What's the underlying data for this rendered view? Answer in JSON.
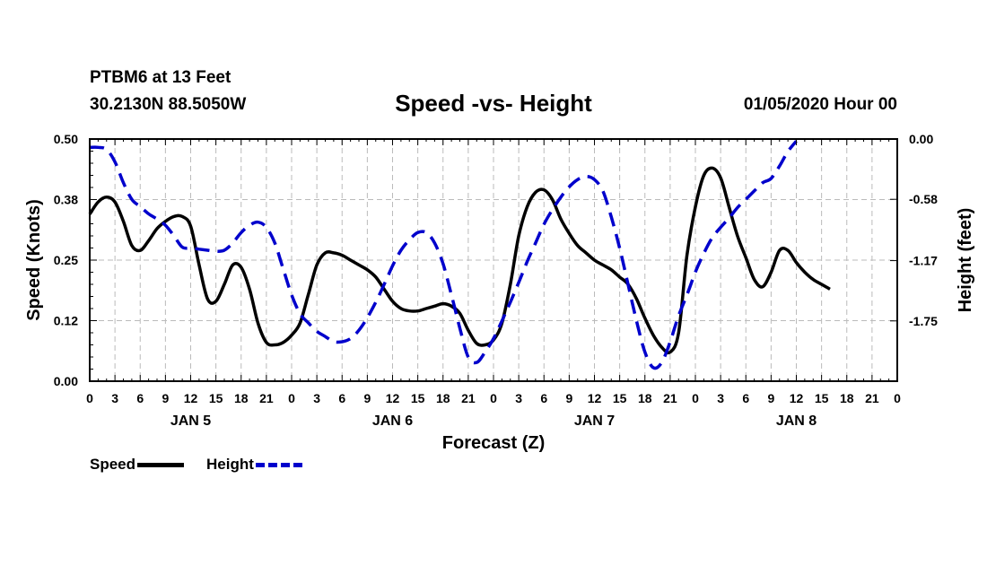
{
  "header": {
    "station": "PTBM6 at 13 Feet",
    "coords": "30.2130N 88.5050W",
    "title": "Speed -vs- Height",
    "datestr": "01/05/2020 Hour 00"
  },
  "colors": {
    "speed": "#000000",
    "height": "#0000cc",
    "grid": "#bbbbbb"
  },
  "legend": {
    "speed": "Speed",
    "height": "Height"
  },
  "chart_data": {
    "type": "line",
    "title": "Speed -vs- Height",
    "xlabel": "Forecast (Z)",
    "ylabel": "Speed (Knots)",
    "y2label": "Height (feet)",
    "x_range": [
      0,
      96
    ],
    "ylim": [
      0,
      0.5
    ],
    "y2lim": [
      -2.33,
      0.0
    ],
    "y_ticks": [
      0.0,
      0.125,
      0.25,
      0.375,
      0.5
    ],
    "y_tick_labels": [
      "0.00",
      "0.12",
      "0.25",
      "0.38",
      "0.50"
    ],
    "y2_ticks": [
      0.0,
      -0.58,
      -1.17,
      -1.75
    ],
    "y2_tick_labels": [
      "0.00",
      "-0.58",
      "-1.17",
      "-1.75"
    ],
    "x_ticks": [
      0,
      3,
      6,
      9,
      12,
      15,
      18,
      21,
      24,
      27,
      30,
      33,
      36,
      39,
      42,
      45,
      48,
      51,
      54,
      57,
      60,
      63,
      66,
      69,
      72,
      75,
      78,
      81,
      84,
      87,
      90,
      93,
      96
    ],
    "x_tick_labels": [
      "0",
      "3",
      "6",
      "9",
      "12",
      "15",
      "18",
      "21",
      "0",
      "3",
      "6",
      "9",
      "12",
      "15",
      "18",
      "21",
      "0",
      "3",
      "6",
      "9",
      "12",
      "15",
      "18",
      "21",
      "0",
      "3",
      "6",
      "9",
      "12",
      "15",
      "18",
      "21",
      "0"
    ],
    "day_labels": [
      {
        "label": "JAN 5",
        "x": 12
      },
      {
        "label": "JAN 6",
        "x": 36
      },
      {
        "label": "JAN 7",
        "x": 60
      },
      {
        "label": "JAN 8",
        "x": 84
      }
    ],
    "grid": true,
    "series": [
      {
        "name": "Speed",
        "axis": "left",
        "style": "solid",
        "points": [
          [
            0,
            0.345
          ],
          [
            1,
            0.37
          ],
          [
            2,
            0.38
          ],
          [
            3,
            0.37
          ],
          [
            4,
            0.33
          ],
          [
            5,
            0.28
          ],
          [
            6,
            0.27
          ],
          [
            7,
            0.29
          ],
          [
            8,
            0.315
          ],
          [
            9,
            0.33
          ],
          [
            10,
            0.34
          ],
          [
            11,
            0.34
          ],
          [
            12,
            0.32
          ],
          [
            13,
            0.24
          ],
          [
            14,
            0.17
          ],
          [
            15,
            0.165
          ],
          [
            16,
            0.2
          ],
          [
            17,
            0.24
          ],
          [
            18,
            0.235
          ],
          [
            19,
            0.19
          ],
          [
            20,
            0.12
          ],
          [
            21,
            0.08
          ],
          [
            22,
            0.075
          ],
          [
            23,
            0.08
          ],
          [
            24,
            0.095
          ],
          [
            25,
            0.12
          ],
          [
            26,
            0.18
          ],
          [
            27,
            0.24
          ],
          [
            28,
            0.265
          ],
          [
            29,
            0.265
          ],
          [
            30,
            0.26
          ],
          [
            31,
            0.25
          ],
          [
            32,
            0.24
          ],
          [
            33,
            0.23
          ],
          [
            34,
            0.215
          ],
          [
            35,
            0.19
          ],
          [
            36,
            0.165
          ],
          [
            37,
            0.15
          ],
          [
            38,
            0.145
          ],
          [
            39,
            0.145
          ],
          [
            40,
            0.15
          ],
          [
            41,
            0.155
          ],
          [
            42,
            0.16
          ],
          [
            43,
            0.155
          ],
          [
            44,
            0.14
          ],
          [
            45,
            0.105
          ],
          [
            46,
            0.078
          ],
          [
            47,
            0.075
          ],
          [
            48,
            0.085
          ],
          [
            49,
            0.12
          ],
          [
            50,
            0.2
          ],
          [
            51,
            0.3
          ],
          [
            52,
            0.36
          ],
          [
            53,
            0.39
          ],
          [
            54,
            0.395
          ],
          [
            55,
            0.375
          ],
          [
            56,
            0.335
          ],
          [
            57,
            0.305
          ],
          [
            58,
            0.28
          ],
          [
            59,
            0.265
          ],
          [
            60,
            0.25
          ],
          [
            61,
            0.24
          ],
          [
            62,
            0.23
          ],
          [
            63,
            0.215
          ],
          [
            64,
            0.2
          ],
          [
            65,
            0.17
          ],
          [
            66,
            0.13
          ],
          [
            67,
            0.095
          ],
          [
            68,
            0.07
          ],
          [
            69,
            0.06
          ],
          [
            70,
            0.1
          ],
          [
            71,
            0.26
          ],
          [
            72,
            0.36
          ],
          [
            73,
            0.425
          ],
          [
            74,
            0.44
          ],
          [
            75,
            0.42
          ],
          [
            76,
            0.36
          ],
          [
            77,
            0.3
          ],
          [
            78,
            0.255
          ],
          [
            79,
            0.21
          ],
          [
            80,
            0.195
          ],
          [
            81,
            0.225
          ],
          [
            82,
            0.27
          ],
          [
            83,
            0.27
          ],
          [
            84,
            0.245
          ],
          [
            85,
            0.225
          ],
          [
            86,
            0.21
          ],
          [
            87,
            0.2
          ],
          [
            88,
            0.19
          ]
        ]
      },
      {
        "name": "Height",
        "axis": "right",
        "style": "dashed",
        "points": [
          [
            0,
            -0.08
          ],
          [
            1,
            -0.08
          ],
          [
            2,
            -0.1
          ],
          [
            3,
            -0.22
          ],
          [
            4,
            -0.42
          ],
          [
            5,
            -0.58
          ],
          [
            6,
            -0.65
          ],
          [
            7,
            -0.72
          ],
          [
            8,
            -0.77
          ],
          [
            9,
            -0.83
          ],
          [
            10,
            -0.93
          ],
          [
            11,
            -1.04
          ],
          [
            12,
            -1.05
          ],
          [
            13,
            -1.06
          ],
          [
            14,
            -1.07
          ],
          [
            15,
            -1.08
          ],
          [
            16,
            -1.07
          ],
          [
            17,
            -1.0
          ],
          [
            18,
            -0.9
          ],
          [
            19,
            -0.83
          ],
          [
            20,
            -0.8
          ],
          [
            21,
            -0.85
          ],
          [
            22,
            -1.0
          ],
          [
            23,
            -1.25
          ],
          [
            24,
            -1.5
          ],
          [
            25,
            -1.68
          ],
          [
            26,
            -1.77
          ],
          [
            27,
            -1.85
          ],
          [
            28,
            -1.9
          ],
          [
            29,
            -1.95
          ],
          [
            30,
            -1.95
          ],
          [
            31,
            -1.92
          ],
          [
            32,
            -1.84
          ],
          [
            33,
            -1.72
          ],
          [
            34,
            -1.57
          ],
          [
            35,
            -1.4
          ],
          [
            36,
            -1.22
          ],
          [
            37,
            -1.07
          ],
          [
            38,
            -0.97
          ],
          [
            39,
            -0.9
          ],
          [
            40,
            -0.9
          ],
          [
            41,
            -1.0
          ],
          [
            42,
            -1.2
          ],
          [
            43,
            -1.5
          ],
          [
            44,
            -1.82
          ],
          [
            45,
            -2.1
          ],
          [
            46,
            -2.15
          ],
          [
            47,
            -2.05
          ],
          [
            48,
            -1.92
          ],
          [
            49,
            -1.75
          ],
          [
            50,
            -1.57
          ],
          [
            51,
            -1.38
          ],
          [
            52,
            -1.18
          ],
          [
            53,
            -1.0
          ],
          [
            54,
            -0.82
          ],
          [
            55,
            -0.68
          ],
          [
            56,
            -0.56
          ],
          [
            57,
            -0.46
          ],
          [
            58,
            -0.39
          ],
          [
            59,
            -0.36
          ],
          [
            60,
            -0.39
          ],
          [
            61,
            -0.5
          ],
          [
            62,
            -0.75
          ],
          [
            63,
            -1.05
          ],
          [
            64,
            -1.4
          ],
          [
            65,
            -1.75
          ],
          [
            66,
            -2.05
          ],
          [
            67,
            -2.2
          ],
          [
            68,
            -2.15
          ],
          [
            69,
            -1.95
          ],
          [
            70,
            -1.7
          ],
          [
            71,
            -1.5
          ],
          [
            72,
            -1.28
          ],
          [
            73,
            -1.1
          ],
          [
            74,
            -0.95
          ],
          [
            75,
            -0.85
          ],
          [
            76,
            -0.76
          ],
          [
            77,
            -0.66
          ],
          [
            78,
            -0.58
          ],
          [
            79,
            -0.5
          ],
          [
            80,
            -0.42
          ],
          [
            81,
            -0.38
          ],
          [
            82,
            -0.26
          ],
          [
            83,
            -0.12
          ],
          [
            84,
            -0.02
          ]
        ]
      }
    ]
  }
}
